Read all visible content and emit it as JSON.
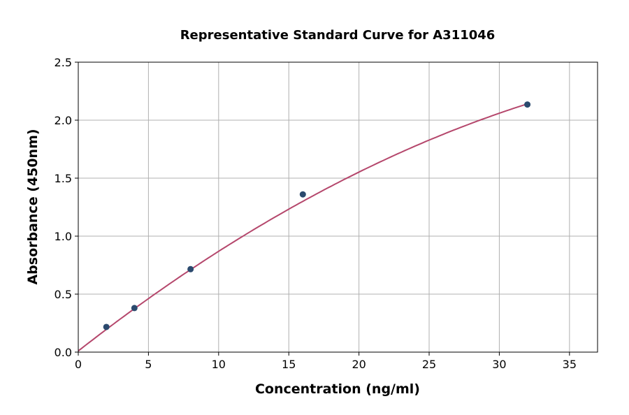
{
  "chart_data": {
    "type": "scatter",
    "title": "Representative Standard Curve for A311046",
    "xlabel": "Concentration (ng/ml)",
    "ylabel": "Absorbance (450nm)",
    "xlim": [
      0,
      37
    ],
    "ylim": [
      0,
      2.5
    ],
    "xticks": [
      "0",
      "5",
      "10",
      "15",
      "20",
      "25",
      "30",
      "35"
    ],
    "yticks": [
      "0.0",
      "0.5",
      "1.0",
      "1.5",
      "2.0",
      "2.5"
    ],
    "grid": true,
    "points": {
      "x": [
        2,
        4,
        8,
        16,
        32
      ],
      "y": [
        0.217,
        0.38,
        0.715,
        1.36,
        2.135
      ]
    },
    "fit_curve": {
      "x": [
        0,
        2,
        4,
        6,
        8,
        10,
        12,
        14,
        16,
        18,
        20,
        22,
        24,
        26,
        28,
        30,
        32
      ],
      "y": [
        0.01,
        0.195,
        0.375,
        0.549,
        0.718,
        0.881,
        1.039,
        1.192,
        1.34,
        1.482,
        1.619,
        1.75,
        1.876,
        1.997,
        2.113,
        2.223,
        2.135
      ]
    },
    "colors": {
      "points": "#2b4a6e",
      "curve": "#b5476c",
      "grid": "#b0b0b0"
    }
  }
}
